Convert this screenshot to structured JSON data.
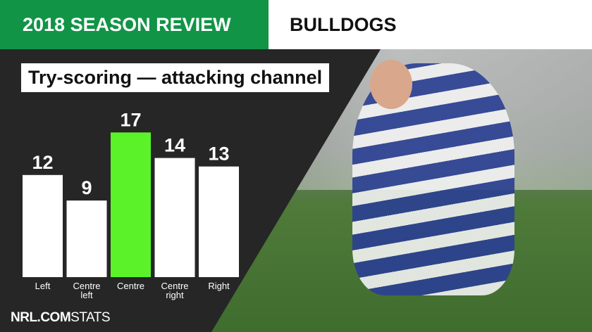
{
  "header": {
    "title": "2018 SEASON REVIEW",
    "team": "BULLDOGS"
  },
  "colors": {
    "brand_green": "#129447",
    "highlight_bar": "#5cf22a",
    "bar": "#ffffff"
  },
  "chart_data": {
    "type": "bar",
    "title": "Try-scoring — attacking channel",
    "categories": [
      "Left",
      "Centre left",
      "Centre",
      "Centre right",
      "Right"
    ],
    "values": [
      12,
      9,
      17,
      14,
      13
    ],
    "highlight": "Centre",
    "xlabel": "",
    "ylabel": "",
    "grid": false
  },
  "footer": {
    "logo_bold": "NRL.COM",
    "logo_light": "STATS"
  }
}
